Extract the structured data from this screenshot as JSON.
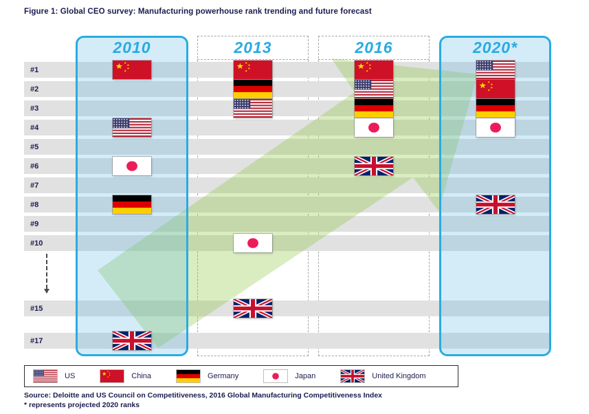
{
  "figure_title": "Figure 1: Global CEO survey: Manufacturing powerhouse rank trending and future forecast",
  "chart_data": {
    "type": "table",
    "title": "Global CEO survey: Manufacturing powerhouse rank trending and future forecast",
    "columns": [
      {
        "label": "2010",
        "highlighted": true
      },
      {
        "label": "2013",
        "highlighted": false
      },
      {
        "label": "2016",
        "highlighted": false
      },
      {
        "label": "2020*",
        "highlighted": true
      }
    ],
    "rank_rows": [
      "#1",
      "#2",
      "#3",
      "#4",
      "#5",
      "#6",
      "#7",
      "#8",
      "#9",
      "#10",
      "#15",
      "#17"
    ],
    "placements": [
      {
        "year": "2010",
        "rank": "#1",
        "country": "China"
      },
      {
        "year": "2010",
        "rank": "#4",
        "country": "US"
      },
      {
        "year": "2010",
        "rank": "#6",
        "country": "Japan"
      },
      {
        "year": "2010",
        "rank": "#8",
        "country": "Germany"
      },
      {
        "year": "2010",
        "rank": "#17",
        "country": "United Kingdom"
      },
      {
        "year": "2013",
        "rank": "#1",
        "country": "China"
      },
      {
        "year": "2013",
        "rank": "#2",
        "country": "Germany"
      },
      {
        "year": "2013",
        "rank": "#3",
        "country": "US"
      },
      {
        "year": "2013",
        "rank": "#10",
        "country": "Japan"
      },
      {
        "year": "2013",
        "rank": "#15",
        "country": "United Kingdom"
      },
      {
        "year": "2016",
        "rank": "#1",
        "country": "China"
      },
      {
        "year": "2016",
        "rank": "#2",
        "country": "US"
      },
      {
        "year": "2016",
        "rank": "#3",
        "country": "Germany"
      },
      {
        "year": "2016",
        "rank": "#4",
        "country": "Japan"
      },
      {
        "year": "2016",
        "rank": "#6",
        "country": "United Kingdom"
      },
      {
        "year": "2020*",
        "rank": "#1",
        "country": "US"
      },
      {
        "year": "2020*",
        "rank": "#2",
        "country": "China"
      },
      {
        "year": "2020*",
        "rank": "#3",
        "country": "Germany"
      },
      {
        "year": "2020*",
        "rank": "#4",
        "country": "Japan"
      },
      {
        "year": "2020*",
        "rank": "#8",
        "country": "United Kingdom"
      }
    ],
    "legend_position": "bottom",
    "annotation": "large translucent green arrow pointing from lower-left to upper-right indicating upward trend"
  },
  "legend": {
    "items": [
      {
        "country": "US",
        "label": "US"
      },
      {
        "country": "China",
        "label": "China"
      },
      {
        "country": "Germany",
        "label": "Germany"
      },
      {
        "country": "Japan",
        "label": "Japan"
      },
      {
        "country": "United Kingdom",
        "label": "United Kingdom"
      }
    ]
  },
  "source": {
    "line1": "Source: Deloitte and US Council on Competitiveness, 2016 Global Manufacturing Competitiveness Index",
    "line2": "* represents projected 2020 ranks"
  },
  "colors": {
    "accent_blue": "#29abe2",
    "highlight_fill": "rgba(83,181,229,0.25)",
    "row_gray": "#e1e1e1",
    "arrow_green": "#8CC63F",
    "text_navy": "#1b1b4f",
    "flag_colors": {
      "us_red": "#B22234",
      "us_blue": "#3C3B6E",
      "china_red": "#CE1126",
      "china_yellow": "#FFDE00",
      "germany_black": "#000000",
      "germany_red": "#DD0000",
      "germany_gold": "#FFCE00",
      "japan_red": "#EC1C5A",
      "uk_blue": "#012169",
      "uk_red": "#C8102E"
    }
  }
}
